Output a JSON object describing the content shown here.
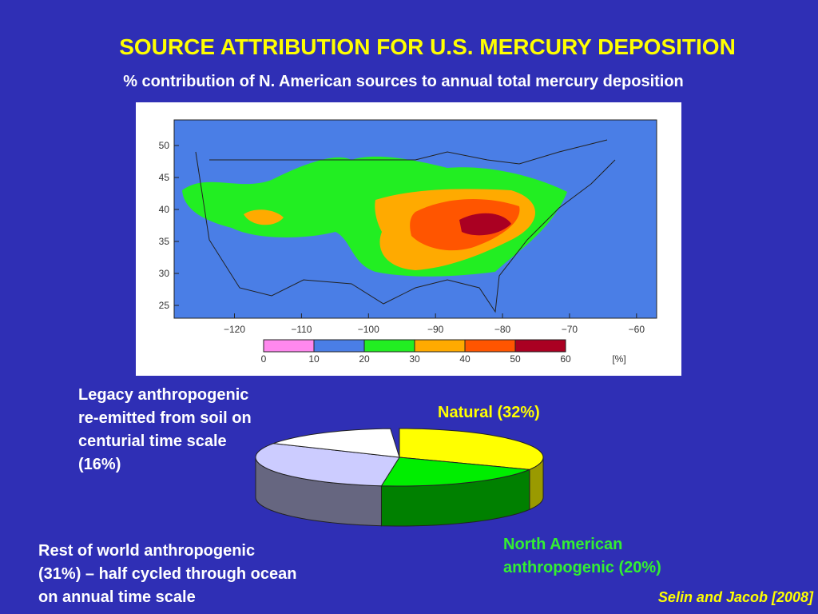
{
  "title": "SOURCE ATTRIBUTION FOR U.S. MERCURY DEPOSITION",
  "subtitle": "% contribution of N. American sources to annual total mercury deposition",
  "map": {
    "xlim": [
      -129,
      -57
    ],
    "ylim": [
      23,
      54
    ],
    "yticks": [
      50,
      45,
      40,
      35,
      30,
      25
    ],
    "xticks": [
      {
        "value": -120,
        "label": "−120"
      },
      {
        "value": -110,
        "label": "−110"
      },
      {
        "value": -100,
        "label": "−100"
      },
      {
        "value": -90,
        "label": "−90"
      },
      {
        "value": -80,
        "label": "−80"
      },
      {
        "value": -70,
        "label": "−70"
      },
      {
        "value": -60,
        "label": "−60"
      }
    ],
    "colorbar": {
      "ticks": [
        0,
        10,
        20,
        30,
        40,
        50,
        60
      ],
      "unit": "[%]",
      "colors": [
        "#ff88ee",
        "#4a7ee6",
        "#22ee22",
        "#ffaa00",
        "#ff5500",
        "#aa0022"
      ]
    }
  },
  "chart_data": {
    "type": "pie",
    "categories": [
      [
        "Natural (32%)"
      ],
      [
        "North American",
        "anthropogenic (20%)"
      ],
      [
        "Rest of world anthropogenic",
        "(31%) – half cycled through ocean",
        "on annual time scale"
      ],
      [
        "Legacy anthropogenic",
        "re-emitted from soil on",
        "centurial time scale",
        "(16%)"
      ]
    ],
    "values": [
      32,
      20,
      31,
      16
    ],
    "colors": [
      "#ffff00",
      "#00ee00",
      "#ccccff",
      "#ffffff"
    ],
    "side_colors": [
      "#9a9a00",
      "#008000",
      "#666680",
      "#cccccc"
    ]
  },
  "citation": "Selin and Jacob [2008]"
}
